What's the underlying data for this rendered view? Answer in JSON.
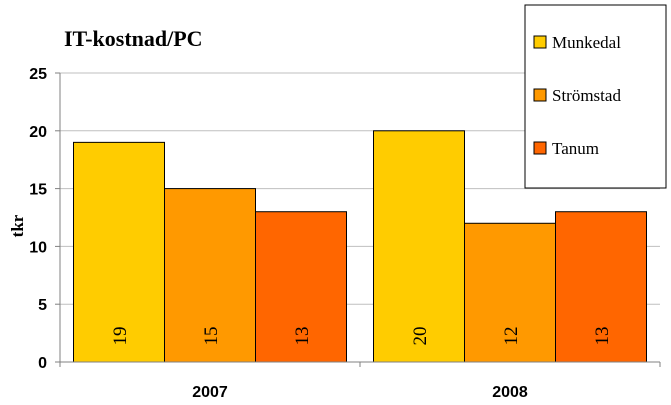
{
  "chart_data": {
    "type": "bar",
    "title": "IT-kostnad/PC",
    "ylabel": "tkr",
    "xlabel": "",
    "categories": [
      "2007",
      "2008"
    ],
    "ylim": [
      0,
      25
    ],
    "yticks": [
      0,
      5,
      10,
      15,
      20,
      25
    ],
    "grid": true,
    "legend_position": "top-right",
    "series": [
      {
        "name": "Munkedal",
        "values": [
          19,
          20
        ],
        "color": "#FFCC00"
      },
      {
        "name": "Strömstad",
        "values": [
          15,
          12
        ],
        "color": "#FF9900"
      },
      {
        "name": "Tanum",
        "values": [
          13,
          13
        ],
        "color": "#FF6600"
      }
    ]
  }
}
